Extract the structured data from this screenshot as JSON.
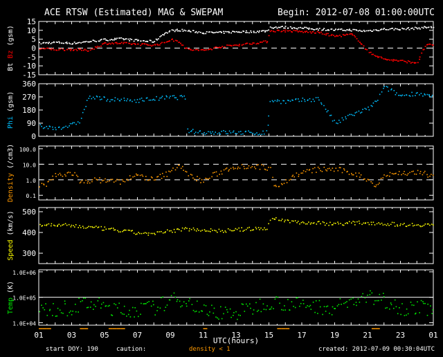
{
  "title": "ACE RTSW (Estimated) MAG & SWEPAM",
  "begin": "Begin: 2012-07-08 01:00:00UTC",
  "footer": {
    "start_doy": "start DOY: 190",
    "caution": "caution:",
    "density_note": "density < 1",
    "created": "created: 2012-07-09 00:30:04UTC",
    "xlabel": "UTC(hours)"
  },
  "colors": {
    "bt": "#ffffff",
    "bz": "#ff0000",
    "phi": "#00bfff",
    "density": "#ff9900",
    "speed": "#ffff00",
    "temp": "#00ee00"
  },
  "chart_data": [
    {
      "type": "line",
      "name": "Bt / Bz",
      "ylabel_parts": [
        "Bt",
        "Bz",
        "(gsm)"
      ],
      "ylim": [
        -15,
        15
      ],
      "yticks": [
        15,
        10,
        5,
        0,
        -5,
        -10,
        -15
      ],
      "ytick_labels": [
        "15",
        "10",
        "5",
        "0",
        "-5",
        "-10",
        "-15"
      ],
      "dashed": [
        0
      ],
      "x_hours": [
        1,
        2,
        3,
        4,
        5,
        6,
        7,
        8,
        8.5,
        9,
        9.5,
        10,
        11,
        12,
        13,
        14,
        14.9,
        15,
        16,
        17,
        18,
        19,
        20,
        20.5,
        21,
        22,
        23,
        24,
        24.5,
        25
      ],
      "series": [
        {
          "name": "Bt",
          "values": [
            3,
            3.5,
            3,
            4,
            5,
            5.5,
            4.5,
            4,
            8,
            10,
            10.5,
            10,
            9,
            9,
            9.5,
            9.5,
            10,
            12,
            12,
            11.5,
            11,
            10.5,
            10.5,
            10,
            10,
            11,
            11,
            11.5,
            12,
            12
          ]
        },
        {
          "name": "Bz",
          "values": [
            0,
            -0.5,
            -0.5,
            -1,
            3,
            3,
            2.5,
            2,
            3,
            5,
            4,
            -0.5,
            -1,
            1,
            2,
            3,
            4,
            10,
            10,
            9.5,
            9,
            7,
            8,
            4,
            -2,
            -6,
            -7,
            -8,
            2,
            2
          ]
        }
      ]
    },
    {
      "type": "scatter",
      "name": "Phi",
      "ylabel": "Phi (gsm)",
      "ylim": [
        0,
        360
      ],
      "yticks": [
        360,
        270,
        180,
        90,
        0
      ],
      "ytick_labels": [
        "360",
        "270",
        "180",
        "90",
        "0"
      ],
      "x_hours": [
        1,
        2,
        3,
        3.5,
        4,
        5,
        6,
        7,
        8,
        9,
        9.9,
        10,
        11,
        12,
        13,
        14,
        14.9,
        15,
        16,
        17,
        18,
        18.5,
        19,
        20,
        21,
        21.5,
        22,
        23,
        24,
        25
      ],
      "values": [
        70,
        60,
        80,
        110,
        270,
        260,
        250,
        250,
        260,
        270,
        270,
        40,
        30,
        30,
        30,
        25,
        30,
        250,
        240,
        250,
        260,
        180,
        90,
        150,
        190,
        240,
        340,
        280,
        300,
        270
      ]
    },
    {
      "type": "scatter",
      "name": "Density",
      "ylabel": "Density (/cm3)",
      "scale": "log",
      "ylim": [
        0.05,
        150
      ],
      "yticks": [
        100,
        10,
        1,
        0.1
      ],
      "ytick_labels": [
        "100.0",
        "10.0",
        "1.0",
        "0.1"
      ],
      "dashed": [
        10,
        1
      ],
      "x_hours": [
        1,
        1.5,
        2,
        3,
        3.5,
        4,
        5,
        6,
        7,
        8,
        9,
        9.5,
        10,
        11,
        12,
        13,
        14,
        15,
        15.3,
        16,
        17,
        18,
        19,
        20,
        21,
        21.5,
        22,
        23,
        24,
        25
      ],
      "values": [
        0.4,
        0.5,
        2,
        3,
        0.6,
        1,
        1,
        0.8,
        2,
        1,
        3,
        10,
        2,
        0.8,
        3,
        8,
        8,
        6,
        0.4,
        0.8,
        3,
        5,
        5,
        3,
        1,
        0.4,
        2,
        3,
        3,
        2
      ]
    },
    {
      "type": "scatter",
      "name": "Speed",
      "ylabel": "Speed (km/s)",
      "ylim": [
        250,
        520
      ],
      "yticks": [
        500,
        400,
        300
      ],
      "ytick_labels": [
        "500",
        "400",
        "300"
      ],
      "x_hours": [
        1,
        3,
        5,
        7,
        8,
        9,
        10,
        12,
        14,
        14.9,
        15,
        17,
        19,
        21,
        23,
        25
      ],
      "values": [
        440,
        435,
        420,
        400,
        395,
        410,
        420,
        410,
        420,
        420,
        470,
        450,
        445,
        450,
        440,
        440
      ]
    },
    {
      "type": "scatter",
      "name": "Temp",
      "ylabel": "Temp (K)",
      "scale": "log",
      "ylim": [
        8000,
        1200000
      ],
      "yticks": [
        1000000,
        100000,
        10000
      ],
      "ytick_labels": [
        "1.0E+06",
        "1.0E+05",
        "1.0E+04"
      ],
      "x_hours": [
        1,
        3,
        4,
        6,
        8,
        9.5,
        11,
        13,
        14,
        15,
        17,
        19,
        21,
        22,
        23,
        25
      ],
      "values": [
        30000,
        40000,
        60000,
        30000,
        40000,
        90000,
        30000,
        25000,
        40000,
        70000,
        50000,
        40000,
        100000,
        80000,
        40000,
        40000
      ]
    },
    {
      "type": "axis",
      "xticks": [
        "01",
        "03",
        "05",
        "07",
        "09",
        "11",
        "13",
        "15",
        "17",
        "19",
        "21",
        "23",
        "01"
      ]
    }
  ]
}
